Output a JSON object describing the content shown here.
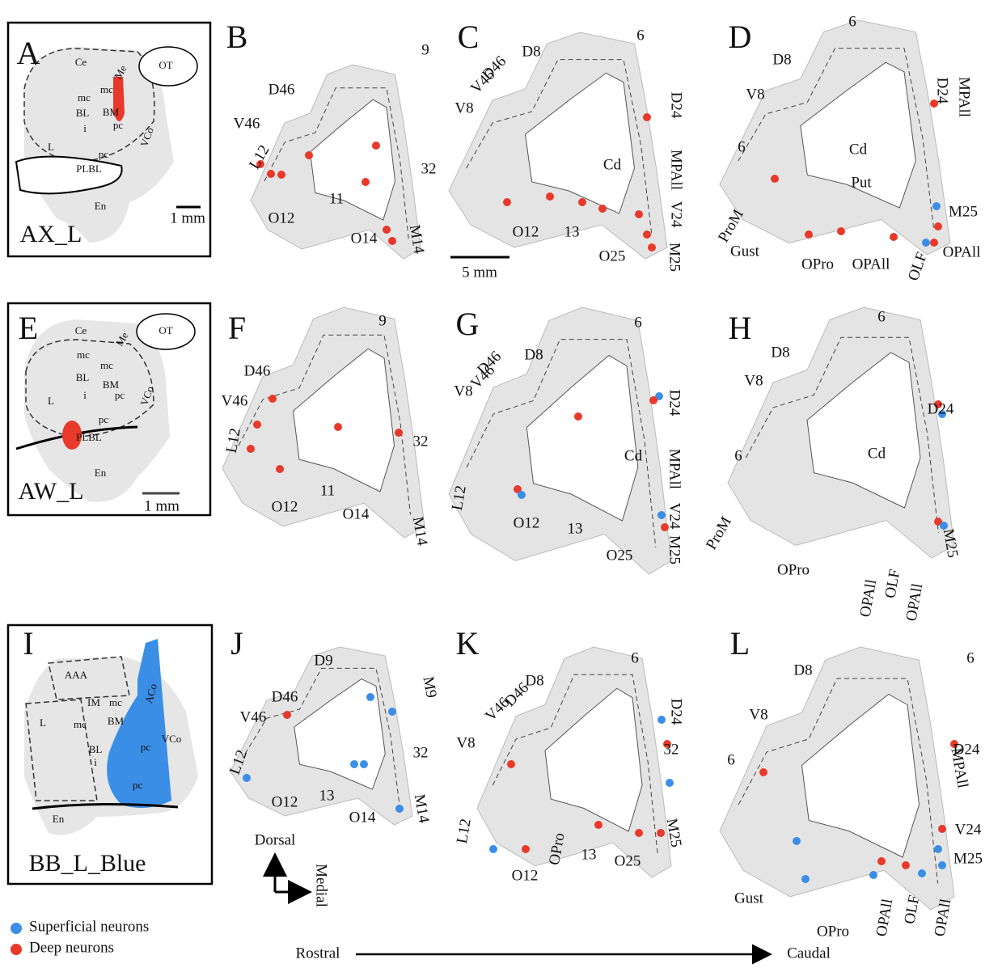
{
  "panels": [
    {
      "letter": "A",
      "case": "AX_L",
      "scale": "1 mm",
      "labels": [
        "Ce",
        "Me",
        "OT",
        "mc",
        "mc",
        "BL",
        "BM",
        "pc",
        "L",
        "i",
        "pc",
        "VCo",
        "PLBL",
        "En"
      ]
    },
    {
      "letter": "B",
      "labels": [
        "9",
        "D46",
        "V46",
        "L12",
        "O12",
        "11",
        "32",
        "O14",
        "M14"
      ]
    },
    {
      "letter": "C",
      "scale": "5 mm",
      "labels": [
        "D8",
        "6",
        "D46",
        "V46",
        "V8",
        "D24",
        "MPAll",
        "V24",
        "Cd",
        "O12",
        "13",
        "O25",
        "M25"
      ]
    },
    {
      "letter": "D",
      "labels": [
        "6",
        "D8",
        "V8",
        "6",
        "D24",
        "MPAll",
        "Cd",
        "Put",
        "M25",
        "ProM",
        "Gust",
        "OPro",
        "OPAll",
        "OLF",
        "OPAll"
      ]
    },
    {
      "letter": "E",
      "case": "AW_L",
      "scale": "1 mm",
      "labels": [
        "Ce",
        "Me",
        "OT",
        "mc",
        "mc",
        "BL",
        "BM",
        "pc",
        "L",
        "i",
        "pc",
        "VCo",
        "PLBL",
        "En"
      ]
    },
    {
      "letter": "F",
      "labels": [
        "9",
        "D46",
        "V46",
        "L12",
        "O12",
        "11",
        "32",
        "O14",
        "M14"
      ]
    },
    {
      "letter": "G",
      "labels": [
        "6",
        "D8",
        "D46",
        "V46",
        "V8",
        "D24",
        "MPAll",
        "V24",
        "Cd",
        "L12",
        "O12",
        "13",
        "O25",
        "M25"
      ]
    },
    {
      "letter": "H",
      "labels": [
        "6",
        "D8",
        "V8",
        "D24",
        "Cd",
        "6",
        "M25",
        "ProM",
        "OPro",
        "OPAll",
        "OLF",
        "OPAll"
      ]
    },
    {
      "letter": "I",
      "case": "BB_L_Blue",
      "labels": [
        "AAA",
        "IM",
        "mc",
        "BM",
        "L",
        "mc",
        "BL",
        "i",
        "ACo",
        "pc",
        "VCo",
        "pc",
        "En"
      ]
    },
    {
      "letter": "J",
      "labels": [
        "D9",
        "M9",
        "D46",
        "V46",
        "L12",
        "32",
        "O12",
        "13",
        "M14",
        "O14"
      ]
    },
    {
      "letter": "K",
      "labels": [
        "6",
        "D8",
        "D46",
        "V46",
        "V8",
        "D24",
        "32",
        "L12",
        "OPro",
        "M25",
        "13",
        "O25",
        "O12"
      ]
    },
    {
      "letter": "L",
      "labels": [
        "6",
        "D8",
        "V8",
        "D24",
        "6",
        "MPAll",
        "V24",
        "M25",
        "Gust",
        "OPro",
        "OPAll",
        "OLF",
        "OPAll"
      ]
    }
  ],
  "orientation": {
    "dorsal": "Dorsal",
    "medial": "Medial"
  },
  "legend": {
    "superficial": "Superficial neurons",
    "deep": "Deep neurons"
  },
  "direction": {
    "rostral": "Rostral",
    "caudal": "Caudal"
  }
}
